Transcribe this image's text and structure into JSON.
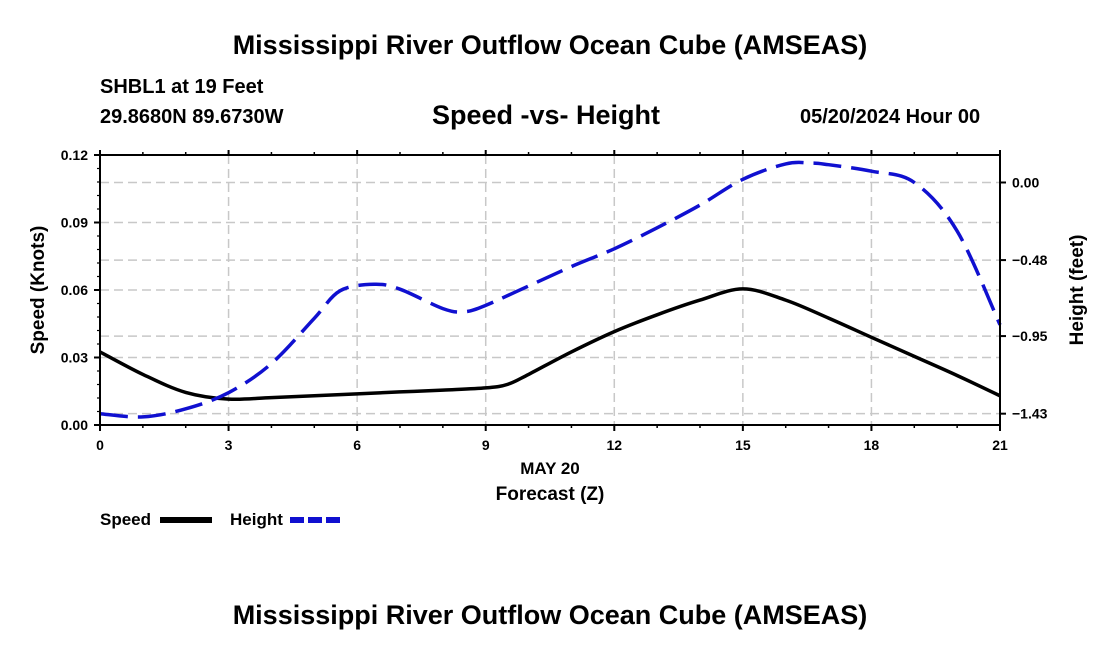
{
  "page": {
    "title": "Mississippi River Outflow Ocean Cube (AMSEAS)",
    "station": "SHBL1 at 19 Feet",
    "coords": "29.8680N  89.6730W",
    "subtitle": "Speed -vs- Height",
    "datetime": "05/20/2024 Hour 00",
    "bottom_title": "Mississippi River Outflow Ocean Cube (AMSEAS)"
  },
  "chart_data": {
    "type": "line",
    "title": "Speed -vs- Height",
    "xlabel": "Forecast (Z)",
    "xlabel_date": "MAY 20",
    "ylabel": "Speed (Knots)",
    "y2label": "Height (feet)",
    "xlim": [
      0,
      21
    ],
    "ylim": [
      0,
      0.12
    ],
    "y2lim": [
      -1.5,
      0.17
    ],
    "x_ticks": [
      0,
      3,
      6,
      9,
      12,
      15,
      18,
      21
    ],
    "x_tick_labels": [
      "0",
      "3",
      "6",
      "9",
      "12",
      "15",
      "18",
      "21"
    ],
    "y_ticks": [
      0,
      0.03,
      0.06,
      0.09,
      0.12
    ],
    "y_tick_labels": [
      "0.00",
      "0.03",
      "0.06",
      "0.09",
      "0.12"
    ],
    "y2_ticks": [
      0.0,
      -0.48,
      -0.95,
      -1.43
    ],
    "y2_tick_labels": [
      "0.00",
      "−0.48",
      "−0.95",
      "−1.43"
    ],
    "grid": true,
    "legend_position": "bottom-left",
    "series": [
      {
        "name": "Speed",
        "axis": "left",
        "color": "#000000",
        "dash": "solid",
        "x": [
          0,
          1,
          2,
          3,
          4,
          5,
          6,
          7,
          8,
          9,
          9.5,
          10,
          11,
          12,
          13,
          14,
          15,
          16,
          17,
          18,
          19,
          20,
          21
        ],
        "values": [
          0.0325,
          0.0225,
          0.0145,
          0.0115,
          0.0122,
          0.013,
          0.0138,
          0.0147,
          0.0155,
          0.0165,
          0.018,
          0.0225,
          0.0325,
          0.0415,
          0.049,
          0.0555,
          0.0605,
          0.0555,
          0.0475,
          0.039,
          0.0305,
          0.022,
          0.013
        ]
      },
      {
        "name": "Height",
        "axis": "right",
        "color": "#1010d0",
        "dash": "dashed",
        "x": [
          0,
          1,
          2,
          3,
          4,
          5,
          5.6,
          6.4,
          7,
          8,
          8.5,
          9,
          10,
          11,
          12,
          13,
          14,
          15,
          16,
          16.6,
          17,
          18,
          19,
          20,
          21
        ],
        "values": [
          -1.43,
          -1.45,
          -1.4,
          -1.3,
          -1.12,
          -0.84,
          -0.67,
          -0.63,
          -0.66,
          -0.78,
          -0.8,
          -0.76,
          -0.64,
          -0.52,
          -0.41,
          -0.28,
          -0.14,
          0.02,
          0.115,
          0.12,
          0.11,
          0.07,
          0.0,
          -0.3,
          -0.88
        ]
      }
    ]
  }
}
